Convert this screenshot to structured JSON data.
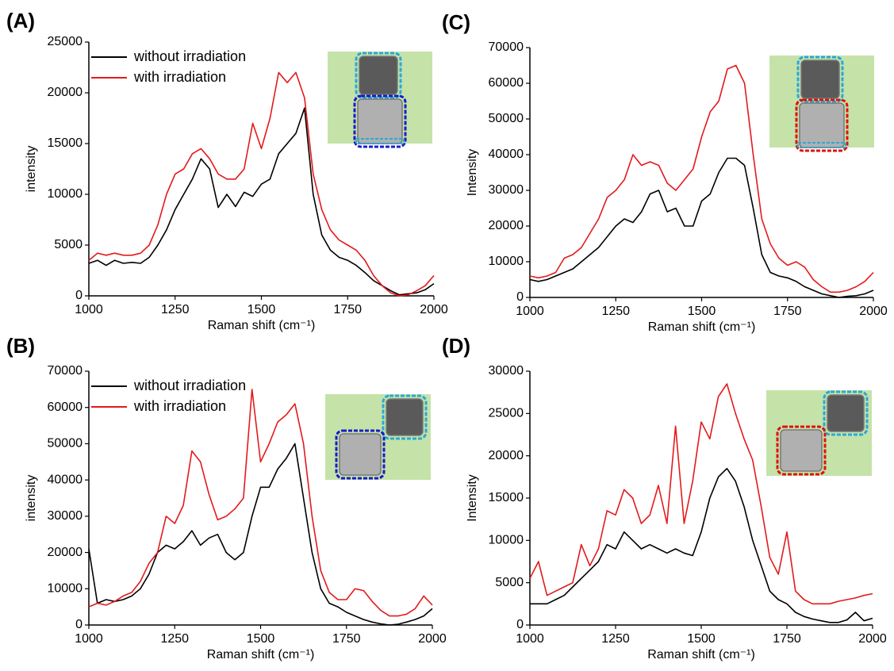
{
  "chart_data": [
    {
      "type": "line",
      "label": "(A)",
      "x_label": "Raman shift (cm⁻¹)",
      "y_label": "intensity",
      "legend": "upper left",
      "x": [
        1000,
        1025,
        1050,
        1075,
        1100,
        1125,
        1150,
        1175,
        1200,
        1225,
        1250,
        1275,
        1300,
        1325,
        1350,
        1375,
        1400,
        1425,
        1450,
        1475,
        1500,
        1525,
        1550,
        1575,
        1600,
        1625,
        1650,
        1675,
        1700,
        1725,
        1750,
        1775,
        1800,
        1825,
        1850,
        1875,
        1900,
        1925,
        1950,
        1975,
        2000
      ],
      "xlim": [
        1000,
        2000
      ],
      "xticks": [
        1000,
        1250,
        1500,
        1750,
        2000
      ],
      "ylim": [
        0,
        25000
      ],
      "yticks": [
        0,
        5000,
        10000,
        15000,
        20000,
        25000
      ],
      "series": [
        {
          "name": "without irradiation",
          "color": "#000000",
          "values": [
            3200,
            3500,
            3000,
            3500,
            3200,
            3300,
            3200,
            3800,
            5000,
            6500,
            8500,
            10000,
            11500,
            13500,
            12500,
            8700,
            10000,
            8800,
            10200,
            9800,
            11000,
            11500,
            14000,
            15000,
            16000,
            18500,
            10000,
            6000,
            4500,
            3800,
            3500,
            3000,
            2300,
            1500,
            1000,
            500,
            100,
            200,
            300,
            600,
            1200
          ]
        },
        {
          "name": "with irradiation",
          "color": "#e31a1c",
          "values": [
            3500,
            4200,
            4000,
            4200,
            4000,
            4000,
            4200,
            5000,
            7000,
            10000,
            12000,
            12500,
            14000,
            14500,
            13500,
            12000,
            11500,
            11500,
            12500,
            17000,
            14500,
            17500,
            22000,
            21000,
            22000,
            19500,
            12000,
            8500,
            6500,
            5500,
            5000,
            4500,
            3500,
            2000,
            1000,
            300,
            0,
            100,
            500,
            1000,
            2000
          ]
        }
      ]
    },
    {
      "type": "line",
      "label": "(B)",
      "x_label": "Raman shift (cm⁻¹)",
      "y_label": "intensity",
      "legend": "upper left",
      "x": [
        1000,
        1025,
        1050,
        1075,
        1100,
        1125,
        1150,
        1175,
        1200,
        1225,
        1250,
        1275,
        1300,
        1325,
        1350,
        1375,
        1400,
        1425,
        1450,
        1475,
        1500,
        1525,
        1550,
        1575,
        1600,
        1625,
        1650,
        1675,
        1700,
        1725,
        1750,
        1775,
        1800,
        1825,
        1850,
        1875,
        1900,
        1925,
        1950,
        1975,
        2000
      ],
      "xlim": [
        1000,
        2000
      ],
      "xticks": [
        1000,
        1250,
        1500,
        1750,
        2000
      ],
      "ylim": [
        0,
        70000
      ],
      "yticks": [
        0,
        10000,
        20000,
        30000,
        40000,
        50000,
        60000,
        70000
      ],
      "series": [
        {
          "name": "without irradiation",
          "color": "#000000",
          "values": [
            21000,
            6000,
            7000,
            6500,
            7000,
            8000,
            10000,
            14000,
            20000,
            22000,
            21000,
            23000,
            26000,
            22000,
            24000,
            25000,
            20000,
            18000,
            20000,
            30000,
            38000,
            38000,
            43000,
            46000,
            50000,
            35000,
            20000,
            10000,
            6000,
            5000,
            3500,
            2500,
            1500,
            800,
            300,
            0,
            200,
            800,
            1500,
            2500,
            4500
          ]
        },
        {
          "name": "with irradiation",
          "color": "#e31a1c",
          "values": [
            5000,
            6000,
            5500,
            6500,
            8000,
            9000,
            12000,
            17000,
            20000,
            30000,
            28000,
            33000,
            48000,
            45000,
            36000,
            29000,
            30000,
            32000,
            35000,
            65000,
            45000,
            50000,
            56000,
            58000,
            61000,
            50000,
            30000,
            15000,
            9000,
            7000,
            7000,
            10000,
            9500,
            6500,
            4000,
            2500,
            2500,
            3000,
            4500,
            8000,
            5500
          ]
        }
      ]
    },
    {
      "type": "line",
      "label": "(C)",
      "x_label": "Raman shift (cm⁻¹)",
      "y_label": "Intensity",
      "x": [
        1000,
        1025,
        1050,
        1075,
        1100,
        1125,
        1150,
        1175,
        1200,
        1225,
        1250,
        1275,
        1300,
        1325,
        1350,
        1375,
        1400,
        1425,
        1450,
        1475,
        1500,
        1525,
        1550,
        1575,
        1600,
        1625,
        1650,
        1675,
        1700,
        1725,
        1750,
        1775,
        1800,
        1825,
        1850,
        1875,
        1900,
        1925,
        1950,
        1975,
        2000
      ],
      "xlim": [
        1000,
        2000
      ],
      "xticks": [
        1000,
        1250,
        1500,
        1750,
        2000
      ],
      "ylim": [
        0,
        70000
      ],
      "yticks": [
        0,
        10000,
        20000,
        30000,
        40000,
        50000,
        60000,
        70000
      ],
      "series": [
        {
          "color": "#000000",
          "values": [
            5000,
            4500,
            5000,
            6000,
            7000,
            8000,
            10000,
            12000,
            14000,
            17000,
            20000,
            22000,
            21000,
            24000,
            29000,
            30000,
            24000,
            25000,
            20000,
            20000,
            27000,
            29000,
            35000,
            39000,
            39000,
            37000,
            25000,
            12000,
            7000,
            6000,
            5500,
            4500,
            3000,
            2000,
            1000,
            500,
            0,
            300,
            500,
            1000,
            2000
          ]
        },
        {
          "color": "#e31a1c",
          "values": [
            6000,
            5500,
            6000,
            7000,
            11000,
            12000,
            14000,
            18000,
            22000,
            28000,
            30000,
            33000,
            40000,
            37000,
            38000,
            37000,
            32000,
            30000,
            33000,
            36000,
            45000,
            52000,
            55000,
            64000,
            65000,
            60000,
            40000,
            22000,
            15000,
            11000,
            9000,
            10000,
            8500,
            5000,
            3000,
            1500,
            1500,
            2000,
            3000,
            4500,
            7000
          ]
        }
      ]
    },
    {
      "type": "line",
      "label": "(D)",
      "x_label": "Raman shift (cm⁻¹)",
      "y_label": "Intensity",
      "x": [
        1000,
        1025,
        1050,
        1075,
        1100,
        1125,
        1150,
        1175,
        1200,
        1225,
        1250,
        1275,
        1300,
        1325,
        1350,
        1375,
        1400,
        1425,
        1450,
        1475,
        1500,
        1525,
        1550,
        1575,
        1600,
        1625,
        1650,
        1675,
        1700,
        1725,
        1750,
        1775,
        1800,
        1825,
        1850,
        1875,
        1900,
        1925,
        1950,
        1975,
        2000
      ],
      "xlim": [
        1000,
        2000
      ],
      "xticks": [
        1000,
        1250,
        1500,
        1750,
        2000
      ],
      "ylim": [
        0,
        30000
      ],
      "yticks": [
        0,
        5000,
        10000,
        15000,
        20000,
        25000,
        30000
      ],
      "series": [
        {
          "color": "#000000",
          "values": [
            2500,
            2500,
            2500,
            3000,
            3500,
            4500,
            5500,
            6500,
            7500,
            9500,
            9000,
            11000,
            10000,
            9000,
            9500,
            9000,
            8500,
            9000,
            8500,
            8200,
            11000,
            15000,
            17500,
            18500,
            17000,
            14000,
            10000,
            7000,
            4000,
            3000,
            2500,
            1500,
            1000,
            700,
            500,
            300,
            300,
            600,
            1500,
            500,
            800
          ]
        },
        {
          "color": "#e31a1c",
          "values": [
            5500,
            7500,
            3500,
            4000,
            4500,
            5000,
            9500,
            7000,
            9000,
            13500,
            13000,
            16000,
            15000,
            12000,
            13000,
            16500,
            12000,
            23500,
            12000,
            17000,
            24000,
            22000,
            27000,
            28500,
            25000,
            22000,
            19500,
            14000,
            8000,
            6000,
            11000,
            4000,
            3000,
            2500,
            2500,
            2500,
            2800,
            3000,
            3200,
            3500,
            3700
          ]
        }
      ]
    }
  ]
}
